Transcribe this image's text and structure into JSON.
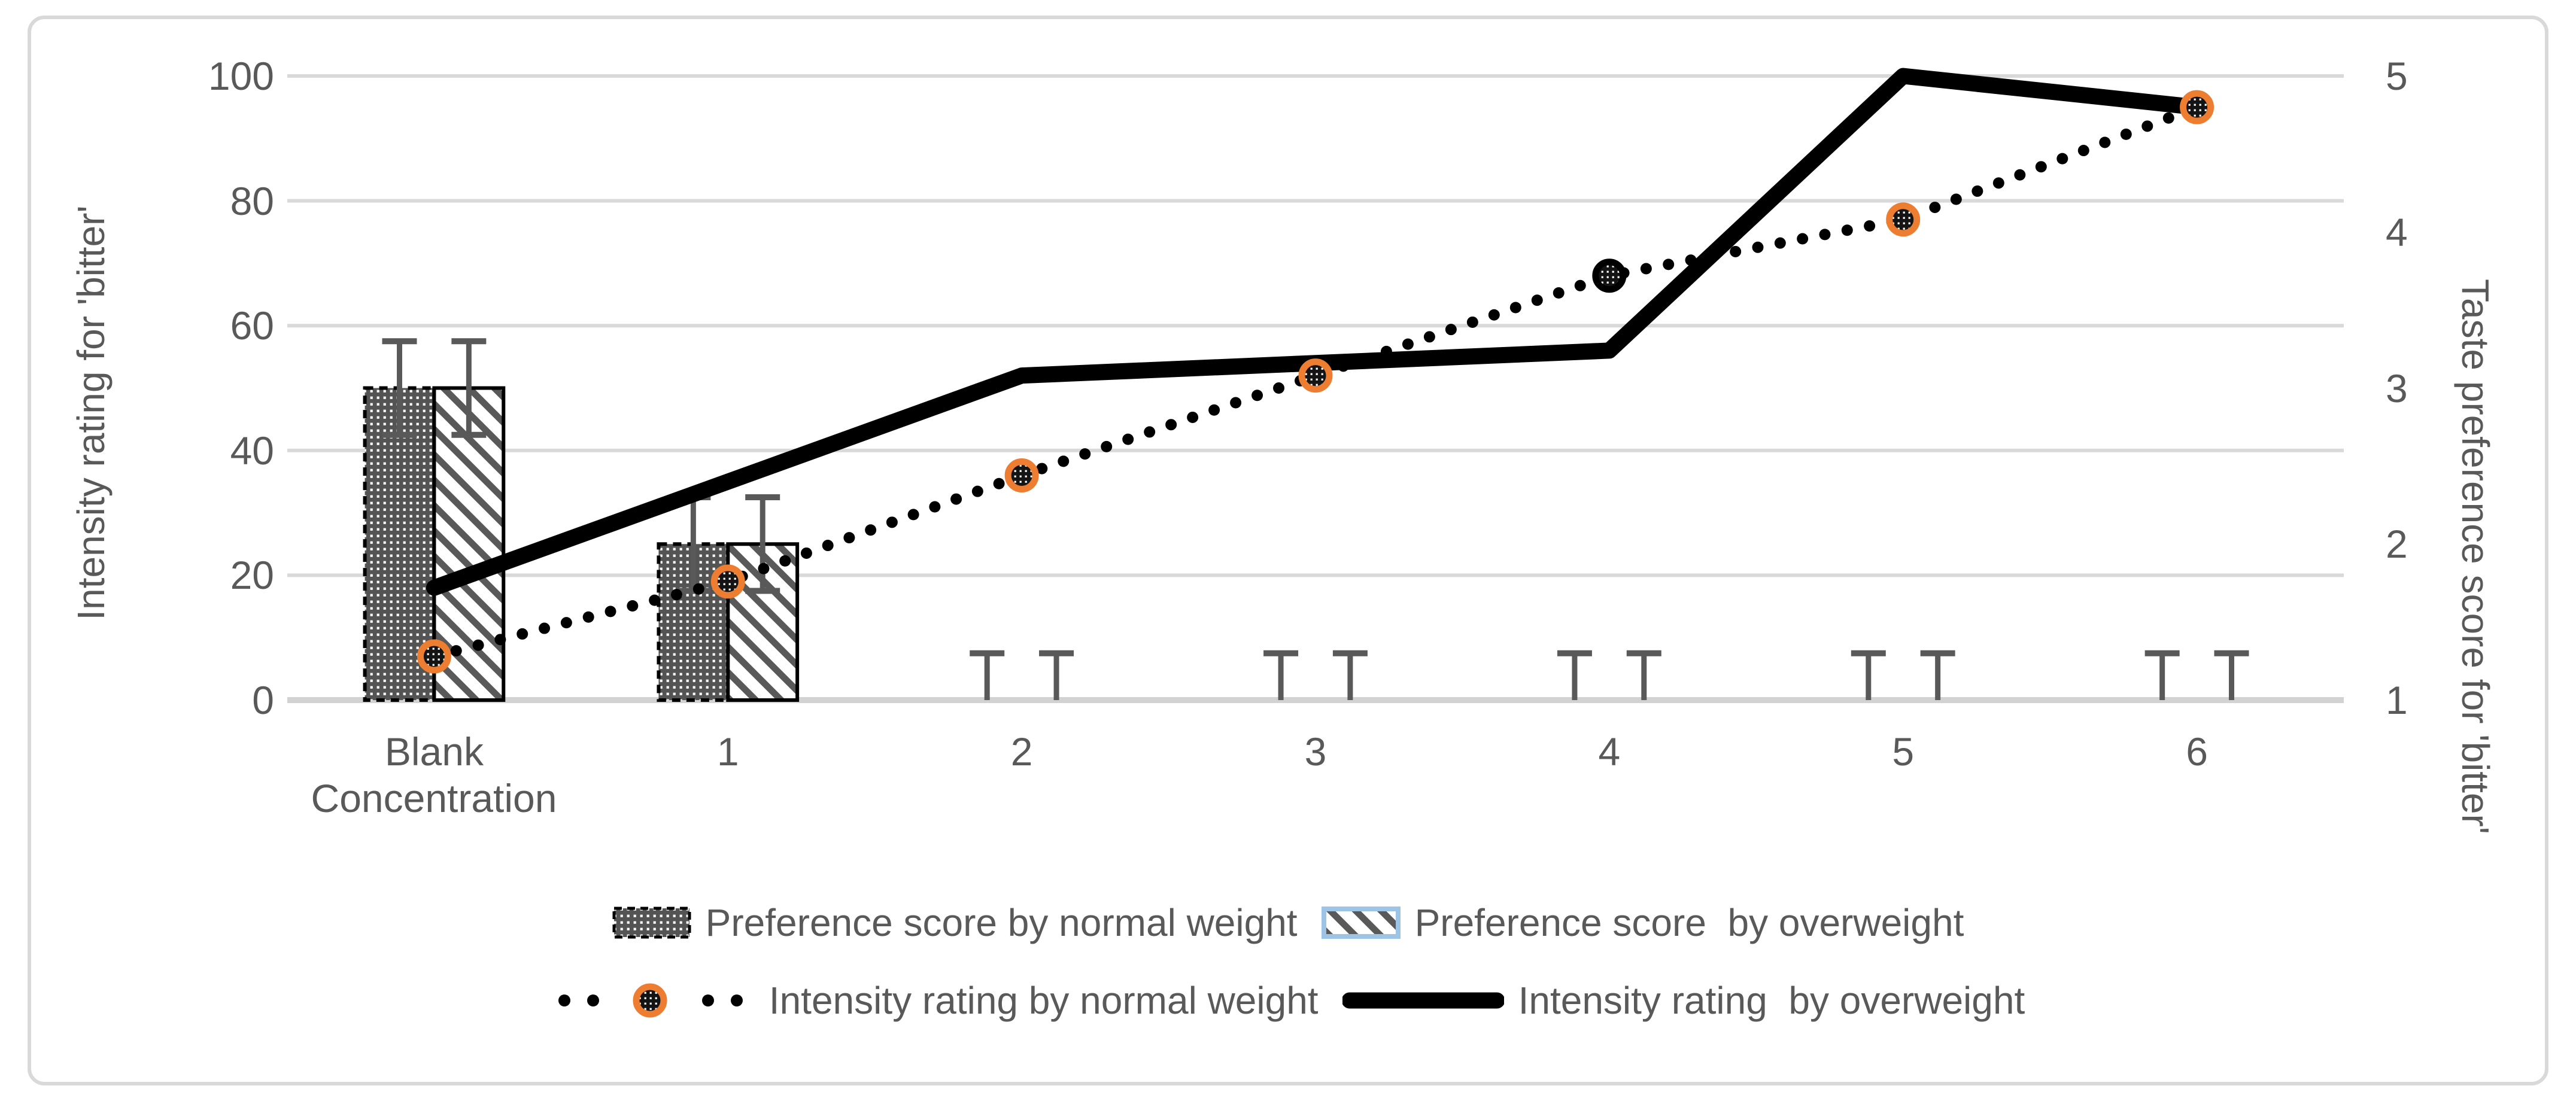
{
  "chart_data": {
    "type": "combo",
    "title": "",
    "categories": [
      "Blank",
      "1",
      "2",
      "3",
      "4",
      "5",
      "6"
    ],
    "x_axis_note": "Concentration",
    "left_axis": {
      "label": "Intensity rating for 'bitter'",
      "min": 0,
      "max": 100,
      "ticks": [
        "0",
        "20",
        "40",
        "60",
        "80",
        "100"
      ]
    },
    "right_axis": {
      "label": "Taste preference score for 'bitter'",
      "min": 1,
      "max": 5,
      "ticks": [
        "1",
        "2",
        "3",
        "4",
        "5"
      ]
    },
    "grid": true,
    "legend_position": "bottom",
    "series": [
      {
        "name": "Preference score by normal weight",
        "type": "bar",
        "axis": "right",
        "values": [
          3.0,
          2.0,
          1.0,
          1.0,
          1.0,
          1.0,
          1.0
        ],
        "error": 0.3,
        "fill_pattern": "dot-grid",
        "border_style": "dashed"
      },
      {
        "name": "Preference score  by overweight",
        "type": "bar",
        "axis": "right",
        "values": [
          3.0,
          2.0,
          1.0,
          1.0,
          1.0,
          1.0,
          1.0
        ],
        "error": 0.3,
        "fill_pattern": "diagonal-hatch",
        "border_style": "solid"
      },
      {
        "name": "Intensity rating by normal weight",
        "type": "line",
        "axis": "left",
        "line_style": "dotted",
        "values": [
          7,
          19,
          36,
          52,
          68,
          77,
          95
        ],
        "marker": "ring-circle",
        "marker_ring_color": "#ED7D31",
        "marker_ring_overrides": {
          "4": "#000000"
        }
      },
      {
        "name": "Intensity rating  by overweight",
        "type": "line",
        "axis": "left",
        "line_style": "solid",
        "values": [
          18,
          35,
          52,
          54,
          56,
          100,
          95
        ],
        "marker": "none"
      }
    ],
    "colors": {
      "accent_orange": "#ED7D31",
      "text_gray": "#595959",
      "gridline_gray": "#D9D9D9",
      "axisline_gray": "#D2D2D2",
      "pattern_gray": "#545454",
      "hatch_swatch_border_blue": "#9DC3E6",
      "series_black": "#000000"
    }
  }
}
